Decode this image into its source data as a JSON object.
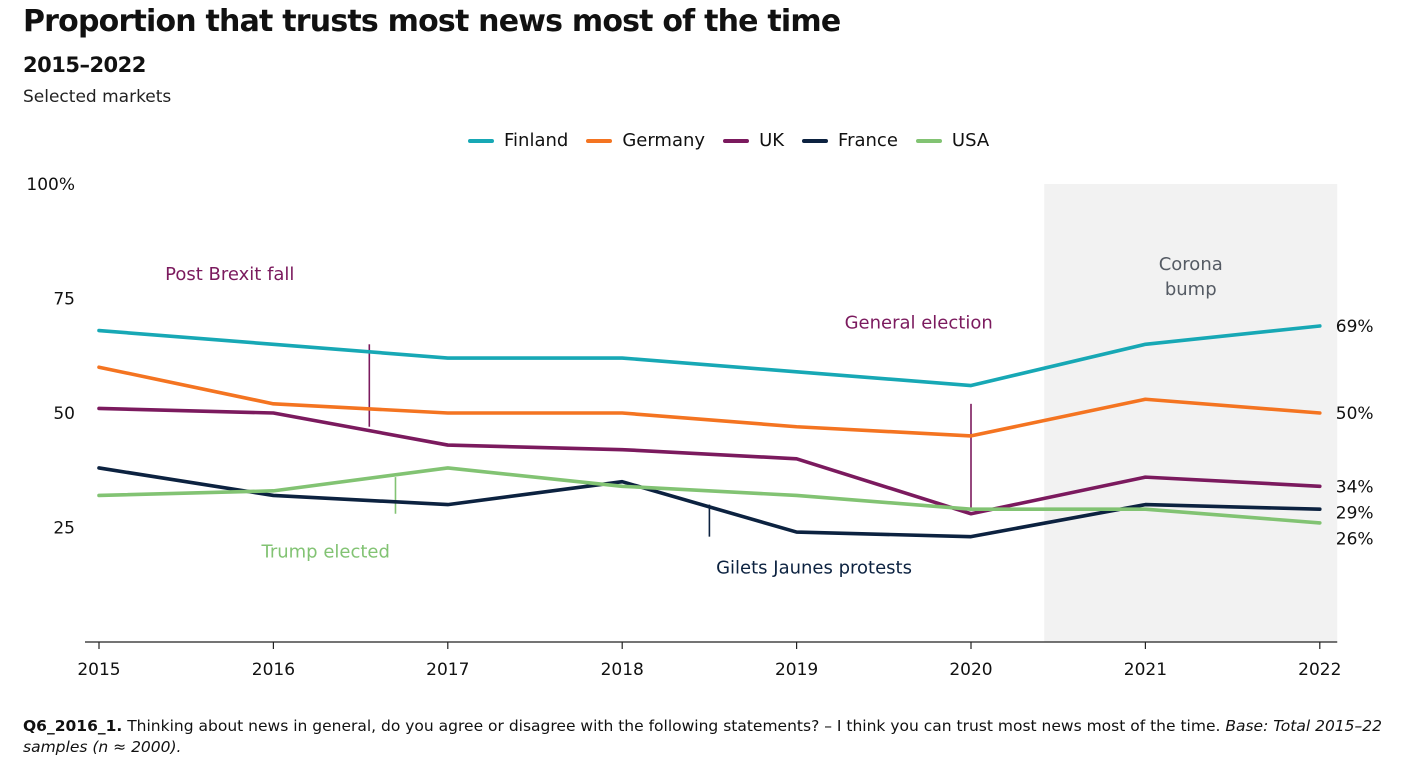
{
  "header": {
    "title": "Proportion that trusts most news most of the time",
    "subtitle": "2015–2022",
    "note": "Selected markets"
  },
  "footnote": {
    "code": "Q6_2016_1.",
    "text": " Thinking about news in general, do you agree or disagree with the following statements? – I think you can trust most news most of the time. ",
    "base": "Base: Total 2015–22 samples (n ≈ 2000)."
  },
  "chart_data": {
    "type": "line",
    "title": "Proportion that trusts most news most of the time",
    "subtitle": "2015–2022",
    "xlabel": "",
    "ylabel": "",
    "x": [
      "2015",
      "2016",
      "2017",
      "2018",
      "2019",
      "2020",
      "2021",
      "2022"
    ],
    "ylim": [
      0,
      100
    ],
    "yticks": [
      25,
      50,
      75,
      100
    ],
    "ytick_labels": [
      "25",
      "50",
      "75",
      "100%"
    ],
    "grid": false,
    "legend_position": "top-center",
    "series": [
      {
        "name": "Finland",
        "color": "#17a8b5",
        "values": [
          68,
          65,
          62,
          62,
          59,
          56,
          65,
          69
        ],
        "end_label": "69%"
      },
      {
        "name": "Germany",
        "color": "#f47421",
        "values": [
          60,
          52,
          50,
          50,
          47,
          45,
          53,
          50
        ],
        "end_label": "50%"
      },
      {
        "name": "UK",
        "color": "#7b1a5e",
        "values": [
          51,
          50,
          43,
          42,
          40,
          28,
          36,
          34
        ],
        "end_label": "34%"
      },
      {
        "name": "France",
        "color": "#0c2240",
        "values": [
          38,
          32,
          30,
          35,
          24,
          23,
          30,
          29
        ],
        "end_label": "29%"
      },
      {
        "name": "USA",
        "color": "#82c373",
        "values": [
          32,
          33,
          38,
          34,
          32,
          29,
          29,
          26
        ],
        "end_label": "26%"
      }
    ],
    "shaded_region": {
      "x_from": 2020.42,
      "x_to": 2022.1,
      "label_lines": [
        "Corona",
        "bump"
      ],
      "color": "#f2f2f2",
      "label_color": "#555b64"
    },
    "annotations": [
      {
        "text": "Post Brexit fall",
        "series": "UK",
        "x": 2016.55,
        "marker_from": 47,
        "marker_to": 65,
        "text_x": 2015.75,
        "text_y": 79,
        "color": "#7b1a5e"
      },
      {
        "text": "General election",
        "series": "UK",
        "x": 2020.0,
        "marker_from": 29,
        "marker_to": 52,
        "text_x": 2019.7,
        "text_y": 68.5,
        "color": "#7b1a5e"
      },
      {
        "text": "Trump elected",
        "series": "USA",
        "x": 2016.7,
        "marker_from": 28,
        "marker_to": 36,
        "text_x": 2016.3,
        "text_y": 18.5,
        "color": "#82c373"
      },
      {
        "text": "Gilets Jaunes protests",
        "series": "France",
        "x": 2018.5,
        "marker_from": 23,
        "marker_to": 30,
        "text_x": 2019.1,
        "text_y": 15,
        "color": "#0c2240"
      }
    ]
  }
}
